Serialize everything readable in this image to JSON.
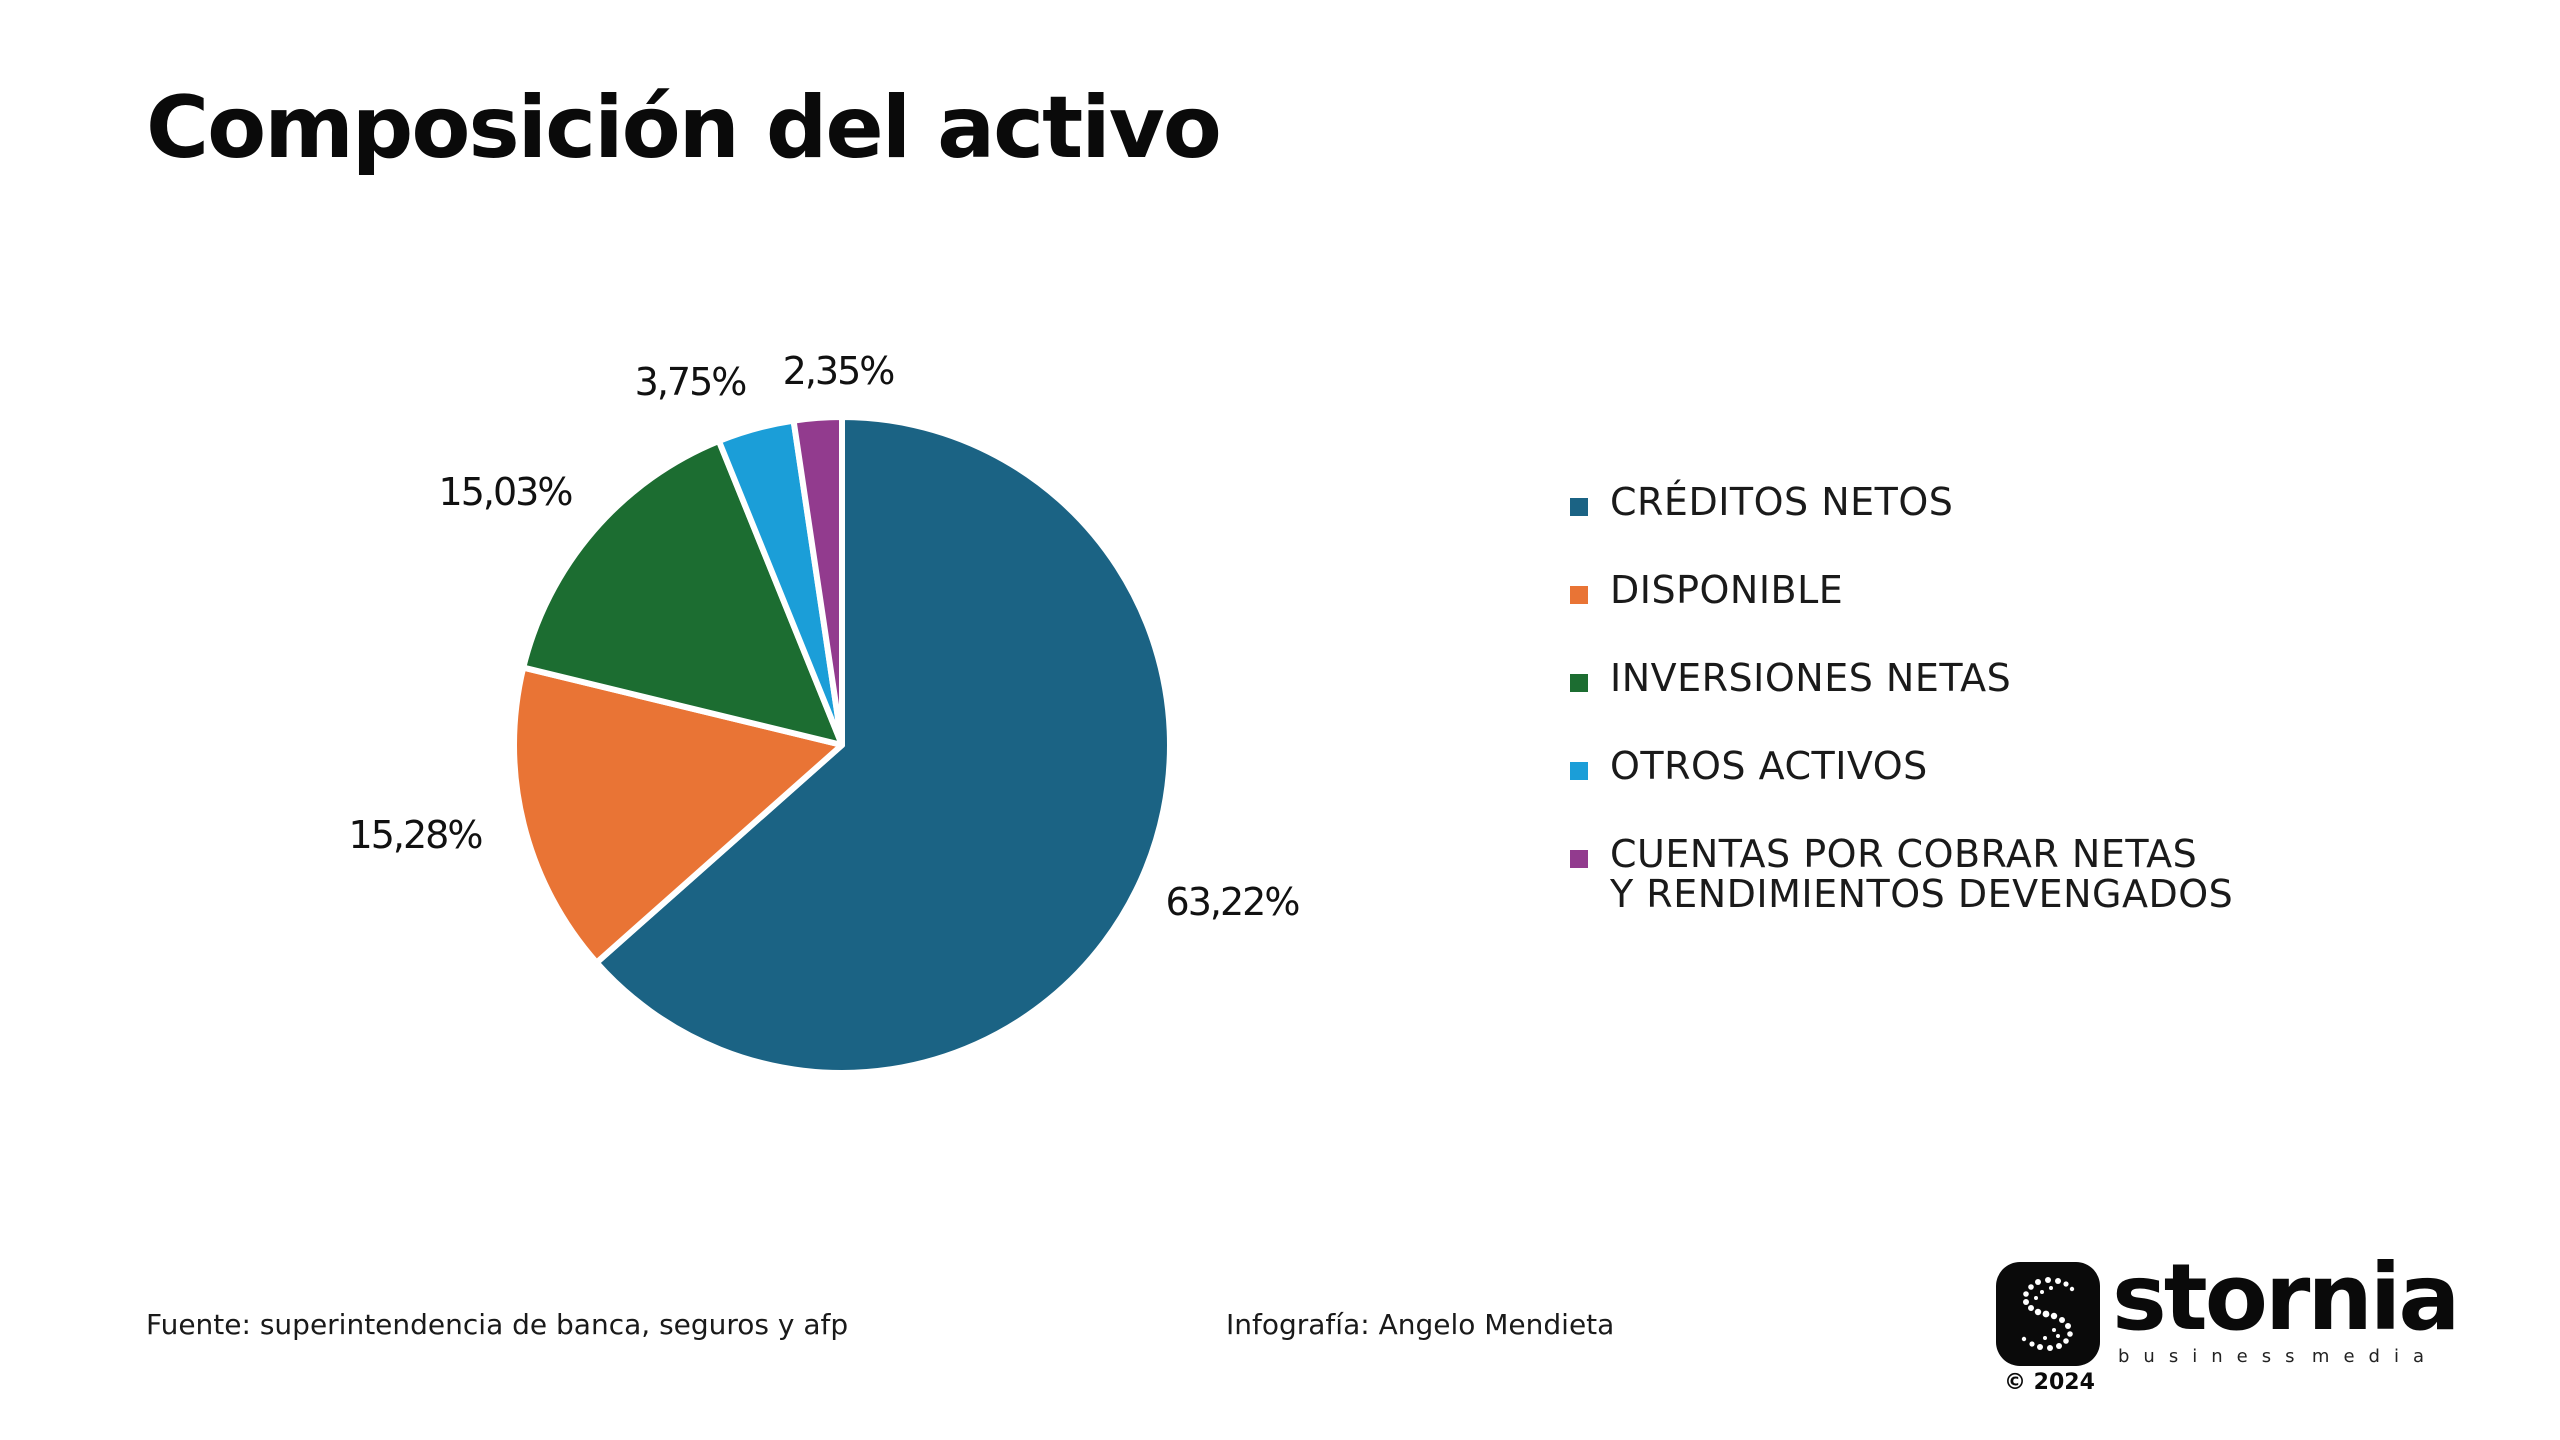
{
  "title": "Composición del activo",
  "chart_data": {
    "type": "pie",
    "title": "Composición del activo",
    "categories": [
      "CRÉDITOS NETOS",
      "DISPONIBLE",
      "INVERSIONES NETAS",
      "OTROS ACTIVOS",
      "CUENTAS POR COBRAR NETAS\nY RENDIMIENTOS DEVENGADOS"
    ],
    "values": [
      63.22,
      15.28,
      15.03,
      3.75,
      2.35
    ],
    "labels": [
      "63,22%",
      "15,28%",
      "15,03%",
      "3,75%",
      "2,35%"
    ],
    "colors": [
      "#1b6384",
      "#e97435",
      "#1c6d31",
      "#1b9ed8",
      "#923b8e"
    ],
    "legend_position": "right",
    "start": "top",
    "direction": "clockwise"
  },
  "footer": {
    "source": "Fuente: superintendencia de banca, seguros y afp",
    "credit": "Infografía: Angelo Mendieta"
  },
  "logo": {
    "icon": "stornia-s-icon",
    "word": "stornia",
    "sub_left": "business",
    "sub_right": "media",
    "year": "© 2024"
  }
}
